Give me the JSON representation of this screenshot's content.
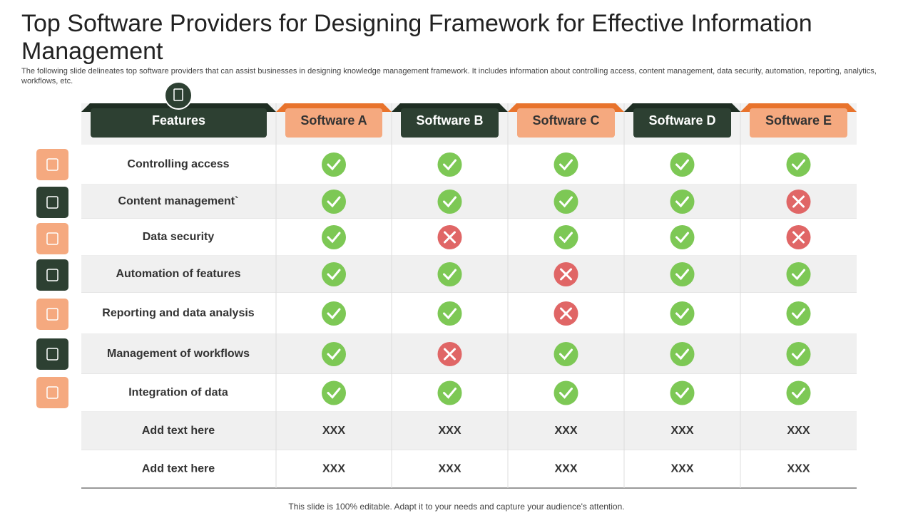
{
  "header": {
    "title": "Top Software Providers for Designing Framework for Effective Information Management",
    "subtitle": "The following slide delineates top software providers that can assist businesses in designing knowledge management framework. It includes information about controlling access, content management, data security, automation, reporting, analytics, workflows, etc."
  },
  "table": {
    "columns": [
      "Features",
      "Software A",
      "Software B",
      "Software C",
      "Software D",
      "Software E"
    ],
    "rows": [
      {
        "feature": "Controlling access",
        "cells": [
          true,
          true,
          true,
          true,
          true
        ]
      },
      {
        "feature": "Content management`",
        "cells": [
          true,
          true,
          true,
          true,
          false
        ]
      },
      {
        "feature": "Data security",
        "cells": [
          true,
          false,
          true,
          true,
          false
        ]
      },
      {
        "feature": "Automation of features",
        "cells": [
          true,
          true,
          false,
          true,
          true
        ]
      },
      {
        "feature": "Reporting and data analysis",
        "cells": [
          true,
          true,
          false,
          true,
          true
        ]
      },
      {
        "feature": "Management of workflows",
        "cells": [
          true,
          false,
          true,
          true,
          true
        ]
      },
      {
        "feature": "Integration of data",
        "cells": [
          true,
          true,
          true,
          true,
          true
        ]
      },
      {
        "feature": "Add text here",
        "cells": [
          "XXX",
          "XXX",
          "XXX",
          "XXX",
          "XXX"
        ]
      },
      {
        "feature": "Add text here",
        "cells": [
          "XXX",
          "XXX",
          "XXX",
          "XXX",
          "XXX"
        ]
      }
    ]
  },
  "footer": "This slide is 100% editable. Adapt it to your needs and capture your audience's attention."
}
